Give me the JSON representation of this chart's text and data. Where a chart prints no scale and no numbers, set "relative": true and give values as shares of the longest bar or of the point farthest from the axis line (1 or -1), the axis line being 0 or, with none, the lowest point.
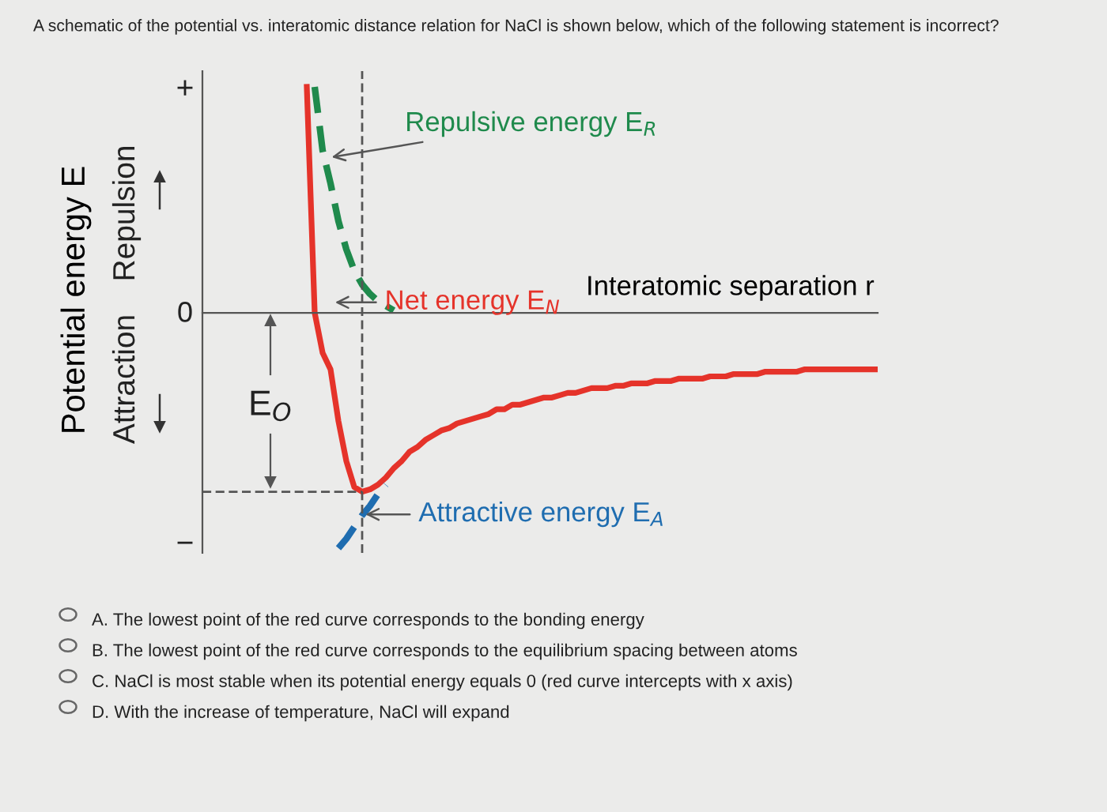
{
  "chart_data": {
    "type": "line",
    "relative": true,
    "title": "A schematic of the potential vs. interatomic distance relation for NaCl is shown below, which of the following statement is incorrect?",
    "xlabel": "Interatomic separation r",
    "ylabel": "Potential energy E",
    "categories": [
      null,
      null,
      null,
      null,
      null,
      null,
      null,
      null,
      null,
      null,
      null,
      null,
      null,
      null,
      null,
      null,
      null,
      null,
      null,
      null,
      null,
      null,
      null,
      null,
      null,
      null,
      null,
      null,
      null,
      null,
      null,
      null,
      null,
      null,
      null,
      null,
      null,
      null,
      null,
      null,
      null,
      null,
      null,
      null,
      null,
      null,
      null,
      null,
      null,
      null,
      null,
      null,
      null,
      null,
      null,
      null,
      null,
      null,
      null,
      null,
      null,
      null,
      null,
      null,
      null,
      null,
      null,
      null,
      null,
      null,
      null,
      null,
      null,
      null,
      null,
      null,
      null,
      null,
      null,
      null,
      null,
      null,
      null,
      null,
      null,
      null
    ],
    "series": [
      {
        "name": "Repulsive energy E$_{R}$",
        "color": "#1f8a4c",
        "line_style": "dashed",
        "values": [
          null,
          null,
          null,
          null,
          null,
          null,
          null,
          null,
          null,
          null,
          null,
          null,
          null,
          null,
          0.96,
          0.69,
          0.55,
          0.39,
          0.27,
          0.18,
          0.12,
          0.08,
          0.05,
          0.03,
          0.01,
          null,
          null,
          null,
          null,
          null,
          null,
          null,
          null,
          null,
          null,
          null,
          null,
          null,
          null,
          null,
          null,
          null,
          null,
          null,
          null,
          null,
          null,
          null,
          null,
          null,
          null,
          null,
          null,
          null,
          null,
          null,
          null,
          null,
          null,
          null,
          null,
          null,
          null,
          null,
          null,
          null,
          null,
          null,
          null,
          null,
          null,
          null,
          null,
          null,
          null,
          null,
          null,
          null,
          null,
          null,
          null,
          null,
          null,
          null,
          null,
          null
        ]
      },
      {
        "name": "Net energy E$_{N}$",
        "color": "#e5332a",
        "line_style": "solid",
        "values": [
          null,
          null,
          null,
          null,
          null,
          null,
          null,
          null,
          null,
          null,
          null,
          null,
          null,
          0.96,
          0,
          -0.17,
          -0.24,
          -0.46,
          -0.63,
          -0.74,
          -0.76,
          -0.75,
          -0.73,
          -0.7,
          -0.66,
          -0.63,
          -0.59,
          -0.57,
          -0.54,
          -0.52,
          -0.5,
          -0.49,
          -0.47,
          -0.46,
          -0.45,
          -0.44,
          -0.43,
          -0.41,
          -0.41,
          -0.39,
          -0.39,
          -0.38,
          -0.37,
          -0.36,
          -0.36,
          -0.35,
          -0.34,
          -0.34,
          -0.33,
          -0.32,
          -0.32,
          -0.32,
          -0.31,
          -0.31,
          -0.3,
          -0.3,
          -0.3,
          -0.29,
          -0.29,
          -0.29,
          -0.28,
          -0.28,
          -0.28,
          -0.28,
          -0.27,
          -0.27,
          -0.27,
          -0.26,
          -0.26,
          -0.26,
          -0.26,
          -0.25,
          -0.25,
          -0.25,
          -0.25,
          -0.25,
          -0.24,
          -0.24,
          -0.24,
          -0.24,
          -0.24,
          -0.24,
          -0.24,
          -0.24,
          -0.24,
          -0.24
        ]
      },
      {
        "name": "Attractive energy E$_{A}$",
        "color": "#1f6db0",
        "line_style": "dashed",
        "values": [
          null,
          null,
          null,
          null,
          null,
          null,
          null,
          null,
          null,
          null,
          null,
          null,
          null,
          null,
          null,
          null,
          null,
          -1.0,
          -0.96,
          -0.91,
          -0.86,
          -0.82,
          -0.77,
          -0.73,
          null,
          null,
          null,
          null,
          null,
          null,
          null,
          null,
          null,
          null,
          null,
          null,
          null,
          null,
          null,
          null,
          null,
          null,
          null,
          null,
          null,
          null,
          null,
          null,
          null,
          null,
          null,
          null,
          null,
          null,
          null,
          null,
          null,
          null,
          null,
          null,
          null,
          null,
          null,
          null,
          null,
          null,
          null,
          null,
          null,
          null,
          null,
          null,
          null,
          null,
          null,
          null,
          null,
          null,
          null,
          null,
          null,
          null,
          null,
          null,
          null,
          null
        ]
      }
    ],
    "ref_lines": [
      {
        "axis": "y",
        "value": -0.76,
        "color": "#555555",
        "line_style": "dashed"
      }
    ],
    "annotations": [
      "+",
      "0",
      "−",
      "Attraction",
      "Repulsion",
      "E$_{O}$",
      "A. The lowest point of the red curve corresponds to the bonding energy",
      "B. The lowest point of the red curve corresponds to the equilibrium spacing between atoms",
      "C. NaCl is most stable when its potential energy equals 0 (red curve intercepts with x axis)",
      "D. With the increase of temperature, NaCl will expand"
    ],
    "legend": false,
    "marker": "none"
  }
}
